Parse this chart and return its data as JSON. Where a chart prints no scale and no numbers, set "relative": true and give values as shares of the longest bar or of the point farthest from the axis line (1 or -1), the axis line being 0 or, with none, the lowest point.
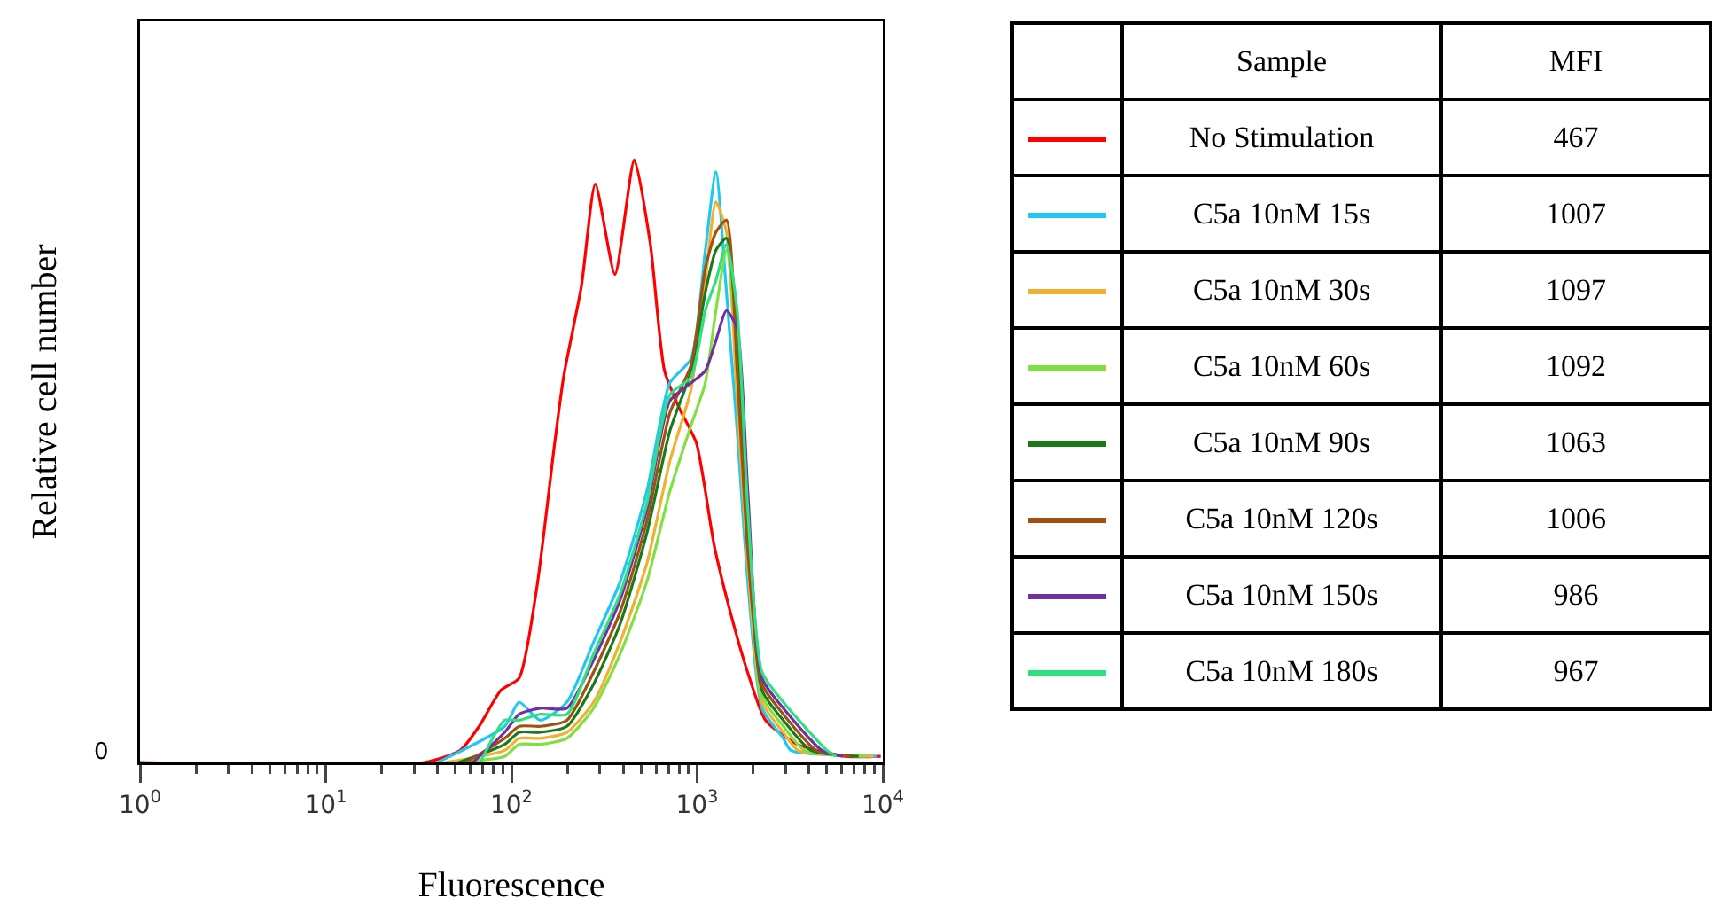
{
  "chart_data": {
    "type": "line",
    "xlabel": "Fluorescence",
    "ylabel": "Relative cell number",
    "log": "x",
    "relative": true,
    "grid": false,
    "legend": "right",
    "marker": "none",
    "line_style": "solid",
    "xlim": [
      1,
      10000
    ],
    "xticks": [
      {
        "value": 1,
        "label": "10$^{0}$"
      },
      {
        "value": 10,
        "label": "10$^{1}$"
      },
      {
        "value": 100,
        "label": "10$^{2}$"
      },
      {
        "value": 1000,
        "label": "10$^{3}$"
      },
      {
        "value": 10000,
        "label": "10$^{4}$"
      }
    ],
    "annotations": [
      {
        "text": "0",
        "x": 1,
        "y": 0
      },
      "Sample",
      "MFI",
      "467",
      "1007",
      "1097",
      "1092",
      "1063",
      "1006",
      "986",
      "967"
    ],
    "series": [
      {
        "name": "No Stimulation",
        "color": "#ff0000",
        "x": [
          1,
          34,
          53,
          67,
          88,
          110,
          137,
          171,
          191,
          238,
          283,
          361,
          459,
          560,
          667,
          796,
          991,
          1236,
          1538,
          1915,
          2336,
          3467,
          6281,
          9750
        ],
        "values": [
          0,
          0,
          0.02,
          0.06,
          0.12,
          0.14,
          0.29,
          0.53,
          0.64,
          0.79,
          0.96,
          0.81,
          1,
          0.86,
          0.65,
          0.59,
          0.53,
          0.36,
          0.24,
          0.14,
          0.07,
          0.03,
          0.01,
          0.01
        ]
      },
      {
        "name": "C5a 10nM 15s",
        "color": "#1ec8f0",
        "x": [
          40,
          92,
          110,
          143,
          199,
          277,
          385,
          536,
          713,
          929,
          1107,
          1262,
          1439,
          1643,
          1875,
          2235,
          2911,
          3200,
          9300
        ],
        "values": [
          0,
          0.06,
          0.1,
          0.07,
          0.1,
          0.2,
          0.3,
          0.45,
          0.63,
          0.67,
          0.85,
          0.98,
          0.78,
          0.55,
          0.3,
          0.09,
          0.04,
          0.02,
          0.01
        ]
      },
      {
        "name": "C5a 10nM 30s",
        "color": "#f0b030",
        "x": [
          44,
          92,
          110,
          143,
          199,
          277,
          385,
          536,
          713,
          929,
          1107,
          1262,
          1439,
          1643,
          1875,
          2235,
          2911,
          3500,
          8900
        ],
        "values": [
          0,
          0.02,
          0.04,
          0.04,
          0.05,
          0.1,
          0.2,
          0.33,
          0.5,
          0.62,
          0.8,
          0.93,
          0.88,
          0.6,
          0.33,
          0.1,
          0.05,
          0.02,
          0.01
        ]
      },
      {
        "name": "C5a 10nM 60s",
        "color": "#80e040",
        "x": [
          48,
          92,
          110,
          143,
          199,
          277,
          385,
          536,
          713,
          929,
          1107,
          1262,
          1439,
          1643,
          1875,
          2235,
          2911,
          3800,
          8100
        ],
        "values": [
          0,
          0.01,
          0.03,
          0.03,
          0.04,
          0.09,
          0.18,
          0.3,
          0.45,
          0.56,
          0.63,
          0.75,
          0.85,
          0.68,
          0.38,
          0.11,
          0.06,
          0.02,
          0.01
        ]
      },
      {
        "name": "C5a 10nM 90s",
        "color": "#1a7a1a",
        "x": [
          52,
          92,
          110,
          143,
          199,
          277,
          385,
          536,
          713,
          929,
          1107,
          1262,
          1439,
          1643,
          1875,
          2235,
          2911,
          4100,
          7400
        ],
        "values": [
          0,
          0.03,
          0.05,
          0.05,
          0.06,
          0.13,
          0.23,
          0.38,
          0.55,
          0.65,
          0.78,
          0.85,
          0.87,
          0.7,
          0.4,
          0.12,
          0.07,
          0.02,
          0.01
        ]
      },
      {
        "name": "C5a 10nM 120s",
        "color": "#a05010",
        "x": [
          57,
          92,
          110,
          143,
          199,
          277,
          385,
          536,
          713,
          929,
          1107,
          1262,
          1439,
          1643,
          1875,
          2235,
          2911,
          4400,
          6700
        ],
        "values": [
          0,
          0.04,
          0.06,
          0.06,
          0.07,
          0.15,
          0.25,
          0.4,
          0.58,
          0.66,
          0.82,
          0.88,
          0.9,
          0.65,
          0.35,
          0.13,
          0.08,
          0.02,
          0.01
        ]
      },
      {
        "name": "C5a 10nM 150s",
        "color": "#7030a0",
        "x": [
          62,
          92,
          110,
          143,
          199,
          277,
          385,
          536,
          713,
          929,
          1107,
          1262,
          1439,
          1643,
          1875,
          2235,
          2911,
          4700,
          6100
        ],
        "values": [
          0,
          0.05,
          0.08,
          0.09,
          0.09,
          0.17,
          0.27,
          0.42,
          0.6,
          0.63,
          0.65,
          0.7,
          0.75,
          0.72,
          0.45,
          0.14,
          0.09,
          0.02,
          0.01
        ]
      },
      {
        "name": "C5a 10nM 180s",
        "color": "#30e080",
        "x": [
          68,
          92,
          110,
          143,
          199,
          277,
          385,
          536,
          713,
          929,
          1107,
          1262,
          1439,
          1643,
          1875,
          2235,
          2911,
          5000,
          5600
        ],
        "values": [
          0,
          0.07,
          0.07,
          0.08,
          0.08,
          0.18,
          0.28,
          0.43,
          0.61,
          0.64,
          0.75,
          0.8,
          0.86,
          0.75,
          0.42,
          0.15,
          0.1,
          0.02,
          0.01
        ]
      }
    ]
  }
}
